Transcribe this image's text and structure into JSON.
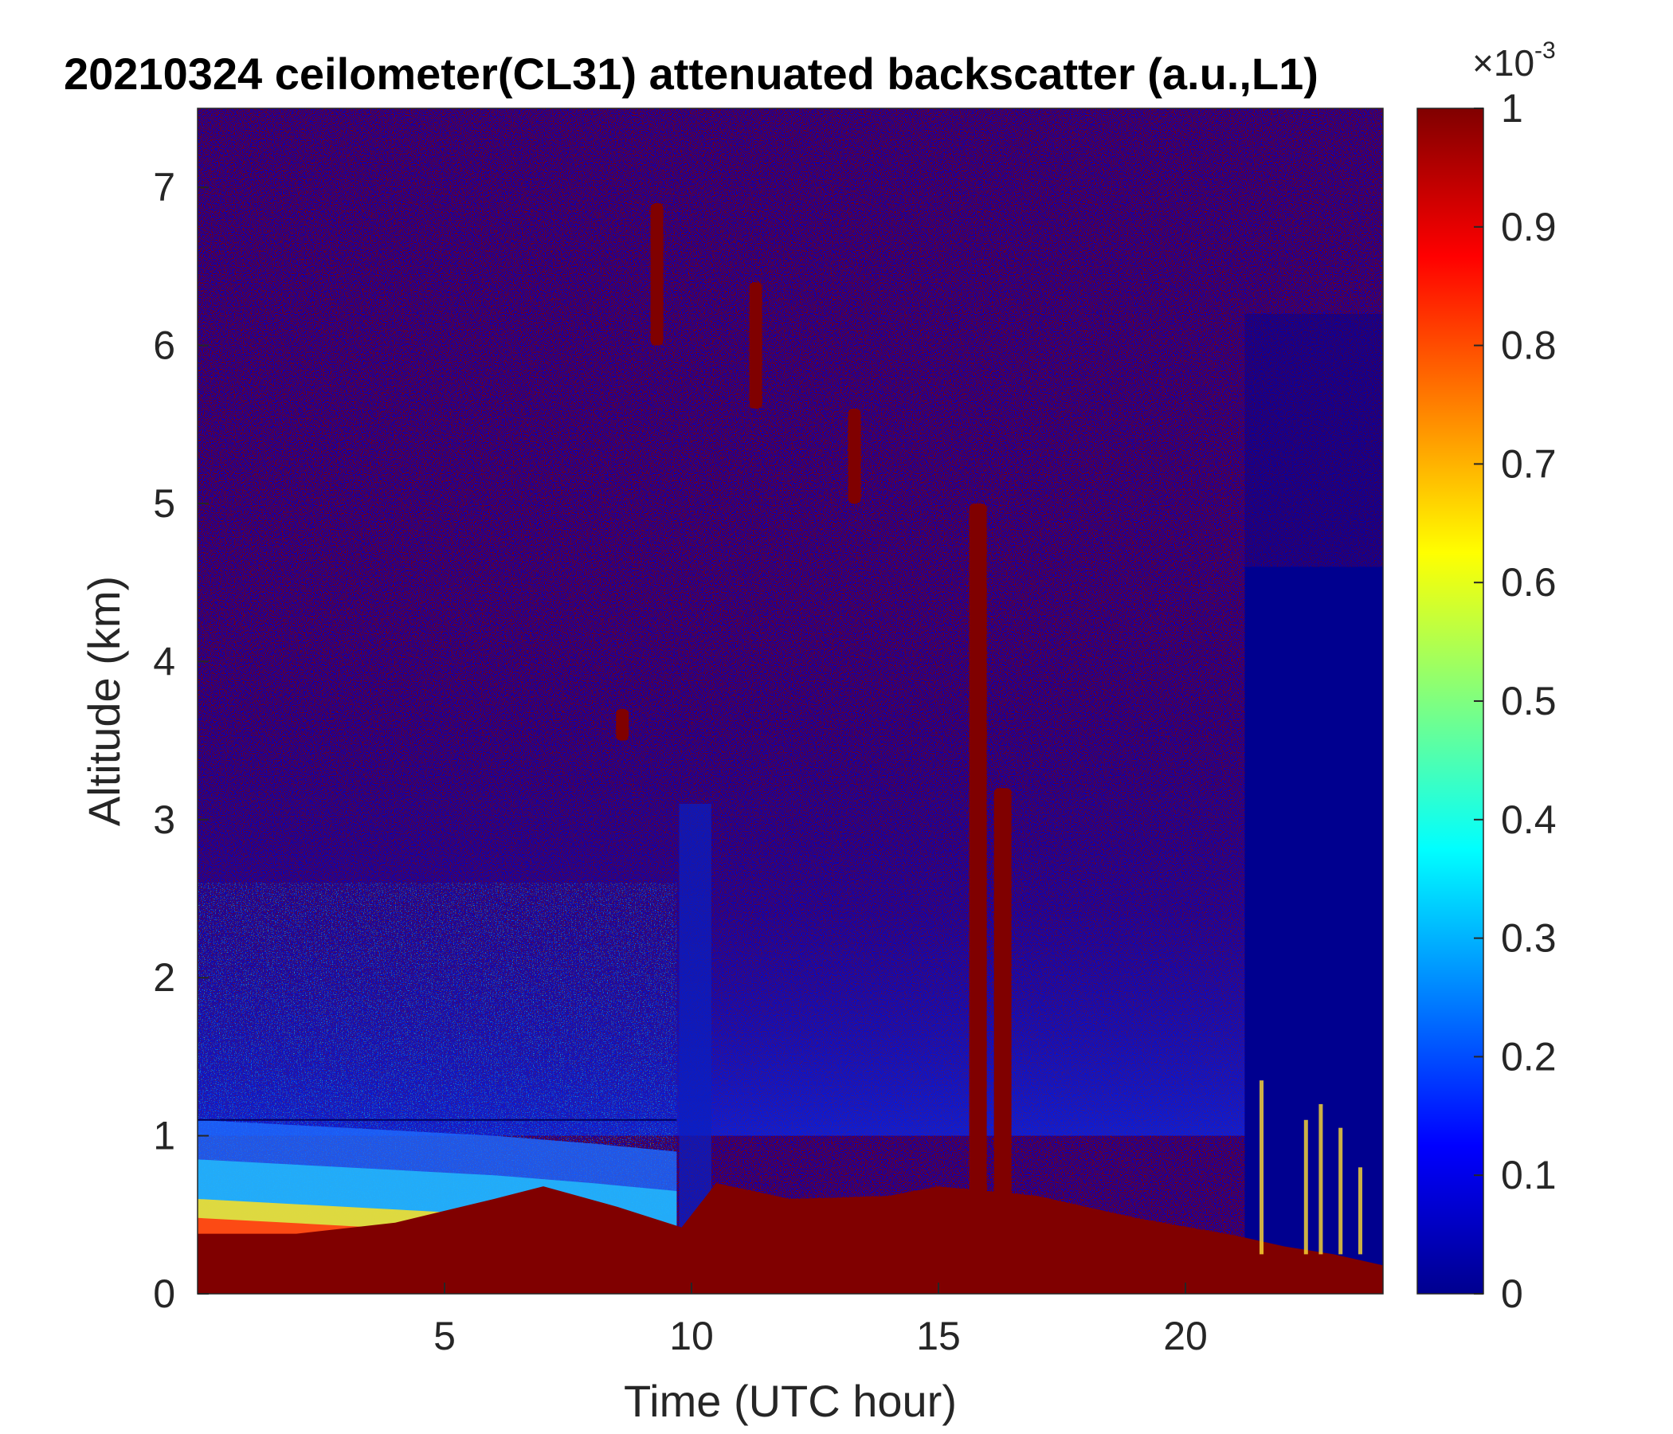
{
  "chart_data": {
    "type": "heatmap",
    "title": "20210324 ceilometer(CL31) attenuated backscatter (a.u.,L1)",
    "xlabel": "Time (UTC hour)",
    "ylabel": "Altitude (km)",
    "xlim": [
      0,
      24
    ],
    "ylim": [
      0,
      7.5
    ],
    "xticks": [
      5,
      10,
      15,
      20
    ],
    "yticks": [
      0,
      1,
      2,
      3,
      4,
      5,
      6,
      7
    ],
    "colorbar": {
      "colormap": "jet",
      "range": [
        0,
        1
      ],
      "ticks": [
        0,
        0.1,
        0.2,
        0.3,
        0.4,
        0.5,
        0.6,
        0.7,
        0.8,
        0.9,
        1
      ],
      "exponent_base": "×10",
      "exponent": "-3"
    },
    "features": {
      "surface_layer_top_km": [
        [
          0,
          0.38
        ],
        [
          2,
          0.38
        ],
        [
          4,
          0.45
        ],
        [
          6,
          0.6
        ],
        [
          7,
          0.68
        ],
        [
          8.5,
          0.55
        ],
        [
          9.8,
          0.42
        ],
        [
          10.5,
          0.7
        ],
        [
          12,
          0.6
        ],
        [
          14,
          0.62
        ],
        [
          15,
          0.68
        ],
        [
          17,
          0.62
        ],
        [
          19,
          0.48
        ],
        [
          21,
          0.37
        ],
        [
          22,
          0.3
        ],
        [
          23,
          0.25
        ],
        [
          24,
          0.18
        ]
      ],
      "aerosol_layer_top_km": [
        [
          0,
          1.1
        ],
        [
          3,
          1.05
        ],
        [
          6,
          1.0
        ],
        [
          8,
          0.95
        ],
        [
          9.7,
          0.9
        ]
      ],
      "clear_region_hours": [
        21.2,
        24
      ],
      "cloud_streaks": [
        {
          "x_hour": 15.8,
          "y_range_km": [
            0.6,
            5.0
          ]
        },
        {
          "x_hour": 16.3,
          "y_range_km": [
            0.6,
            3.2
          ]
        },
        {
          "x_hour": 9.3,
          "y_range_km": [
            6.0,
            6.9
          ]
        },
        {
          "x_hour": 11.3,
          "y_range_km": [
            5.6,
            6.4
          ]
        },
        {
          "x_hour": 13.3,
          "y_range_km": [
            5.0,
            5.6
          ]
        },
        {
          "x_hour": 8.6,
          "y_range_km": [
            3.5,
            3.7
          ]
        }
      ]
    }
  },
  "colors": {
    "background": "#ffffff",
    "axis": "#262626",
    "title": "#000000",
    "dark_red": "#800000",
    "dark_blue": "#00008f"
  }
}
